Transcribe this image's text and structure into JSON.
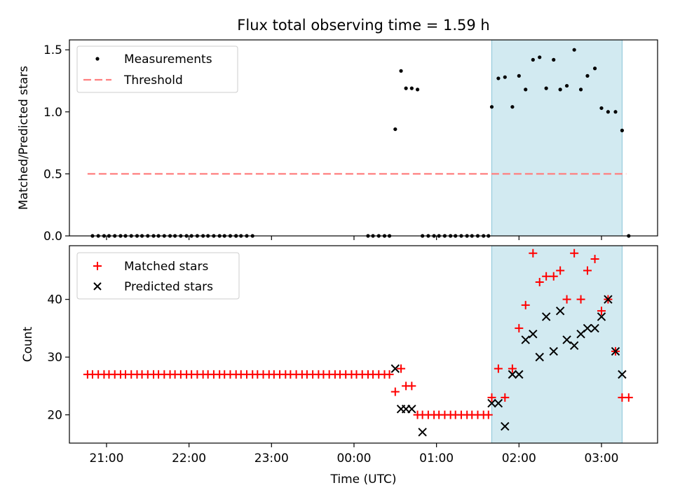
{
  "chart_data": {
    "title": "Flux total observing time = 1.59 h",
    "xlabel": "Time (UTC)",
    "x_unit": "hours relative to 00:00 UTC",
    "xlim": [
      -3.45,
      3.68
    ],
    "xticks": [
      -3,
      -2,
      -1,
      0,
      1,
      2,
      3
    ],
    "xtick_labels": [
      "21:00",
      "22:00",
      "23:00",
      "00:00",
      "01:00",
      "02:00",
      "03:00"
    ],
    "highlight_span": [
      1.67,
      3.25
    ],
    "highlight_color": "#add8e6",
    "top": {
      "type": "scatter",
      "ylabel": "Matched/Predicted stars",
      "ylim": [
        0,
        1.58
      ],
      "yticks": [
        0.0,
        0.5,
        1.0,
        1.5
      ],
      "ytick_labels": [
        "0.0",
        "0.5",
        "1.0",
        "1.5"
      ],
      "legend_position": "top-left",
      "measurements": {
        "name": "Measurements",
        "color": "#000000",
        "x": [
          -3.17,
          -3.1,
          -3.03,
          -2.97,
          -2.9,
          -2.83,
          -2.77,
          -2.7,
          -2.63,
          -2.57,
          -2.5,
          -2.43,
          -2.37,
          -2.3,
          -2.23,
          -2.17,
          -2.1,
          -2.03,
          -1.97,
          -1.9,
          -1.83,
          -1.77,
          -1.7,
          -1.63,
          -1.57,
          -1.5,
          -1.43,
          -1.37,
          -1.3,
          -1.23,
          -1.43,
          0.17,
          0.23,
          0.3,
          0.37,
          0.43,
          0.5,
          0.57,
          0.63,
          0.7,
          0.77,
          0.83,
          0.9,
          0.97,
          1.03,
          1.1,
          1.17,
          1.23,
          1.3,
          1.37,
          1.43,
          1.5,
          1.57,
          1.63,
          1.67,
          1.75,
          1.83,
          1.92,
          2.0,
          2.08,
          2.17,
          2.25,
          2.33,
          2.42,
          2.5,
          2.58,
          2.67,
          2.75,
          2.83,
          2.92,
          3.0,
          3.08,
          3.17,
          3.25,
          3.33
        ],
        "y": [
          0,
          0,
          0,
          0,
          0,
          0,
          0,
          0,
          0,
          0,
          0,
          0,
          0,
          0,
          0,
          0,
          0,
          0,
          0,
          0,
          0,
          0,
          0,
          0,
          0,
          0,
          0,
          0,
          0,
          0,
          0,
          0,
          0,
          0,
          0,
          0,
          0.86,
          1.33,
          1.19,
          1.19,
          1.18,
          0,
          0,
          0,
          0,
          0,
          0,
          0,
          0,
          0,
          0,
          0,
          0,
          0,
          1.04,
          1.27,
          1.28,
          1.04,
          1.29,
          1.18,
          1.42,
          1.44,
          1.19,
          1.42,
          1.18,
          1.21,
          1.5,
          1.18,
          1.29,
          1.35,
          1.03,
          1.0,
          1.0,
          0.85,
          0
        ]
      },
      "threshold": {
        "name": "Threshold",
        "color": "#ff7f7f",
        "value": 0.5,
        "x_range": [
          -3.23,
          3.3
        ]
      }
    },
    "bottom": {
      "type": "scatter",
      "ylabel": "Count",
      "ylim": [
        15.1,
        49.3
      ],
      "yticks": [
        20,
        30,
        40
      ],
      "ytick_labels": [
        "20",
        "30",
        "40"
      ],
      "legend_position": "top-left",
      "matched": {
        "name": "Matched stars",
        "color": "#ff0000",
        "x": [
          -3.23,
          -3.17,
          -3.1,
          -3.03,
          -2.97,
          -2.9,
          -2.83,
          -2.77,
          -2.7,
          -2.63,
          -2.57,
          -2.5,
          -2.43,
          -2.37,
          -2.3,
          -2.23,
          -2.17,
          -2.1,
          -2.03,
          -1.97,
          -1.9,
          -1.83,
          -1.77,
          -1.7,
          -1.63,
          -1.57,
          -1.5,
          -1.43,
          -1.37,
          -1.3,
          -1.23,
          -1.17,
          -1.1,
          -1.03,
          -0.97,
          -0.9,
          -0.83,
          -0.77,
          -0.7,
          -0.63,
          -0.57,
          -0.5,
          -0.43,
          -0.37,
          -0.3,
          -0.23,
          -0.17,
          -0.1,
          -0.03,
          0.03,
          0.1,
          0.17,
          0.23,
          0.3,
          0.37,
          0.43,
          0.5,
          0.57,
          0.63,
          0.7,
          0.77,
          0.83,
          0.9,
          0.97,
          1.03,
          1.1,
          1.17,
          1.23,
          1.3,
          1.37,
          1.43,
          1.5,
          1.57,
          1.63,
          1.67,
          1.75,
          1.83,
          1.92,
          2.0,
          2.08,
          2.17,
          2.25,
          2.33,
          2.42,
          2.5,
          2.58,
          2.67,
          2.75,
          2.83,
          2.92,
          3.0,
          3.08,
          3.17,
          3.25,
          3.33
        ],
        "y": [
          27,
          27,
          27,
          27,
          27,
          27,
          27,
          27,
          27,
          27,
          27,
          27,
          27,
          27,
          27,
          27,
          27,
          27,
          27,
          27,
          27,
          27,
          27,
          27,
          27,
          27,
          27,
          27,
          27,
          27,
          27,
          27,
          27,
          27,
          27,
          27,
          27,
          27,
          27,
          27,
          27,
          27,
          27,
          27,
          27,
          27,
          27,
          27,
          27,
          27,
          27,
          27,
          27,
          27,
          27,
          27,
          24,
          28,
          25,
          25,
          20,
          20,
          20,
          20,
          20,
          20,
          20,
          20,
          20,
          20,
          20,
          20,
          20,
          20,
          23,
          28,
          23,
          28,
          35,
          39,
          48,
          43,
          44,
          44,
          45,
          40,
          48,
          40,
          45,
          47,
          38,
          40,
          31,
          23,
          23
        ]
      },
      "predicted": {
        "name": "Predicted stars",
        "color": "#000000",
        "x": [
          0.5,
          0.57,
          0.63,
          0.7,
          0.83,
          1.67,
          1.75,
          1.83,
          1.92,
          2.0,
          2.08,
          2.17,
          2.25,
          2.33,
          2.42,
          2.5,
          2.58,
          2.67,
          2.75,
          2.83,
          2.92,
          3.0,
          3.08,
          3.17,
          3.25
        ],
        "y": [
          28,
          21,
          21,
          21,
          17,
          22,
          22,
          18,
          27,
          27,
          33,
          34,
          30,
          37,
          31,
          38,
          33,
          32,
          34,
          35,
          35,
          37,
          40,
          31,
          27
        ]
      }
    }
  }
}
